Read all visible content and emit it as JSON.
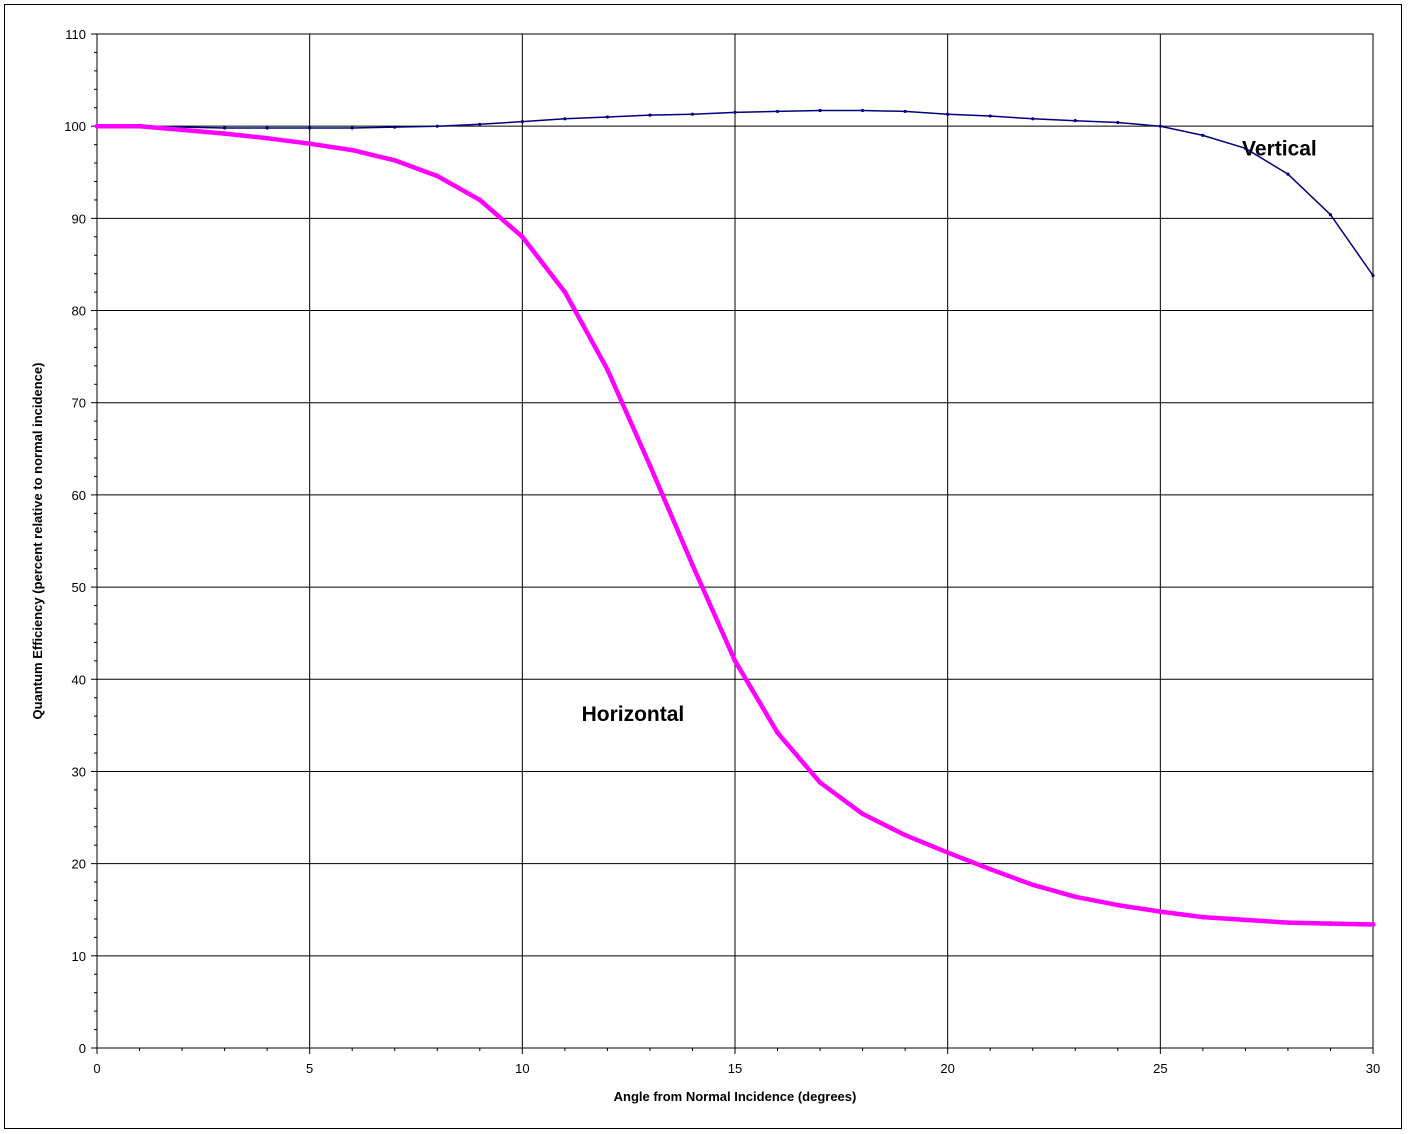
{
  "chart_data": {
    "type": "line",
    "title": "",
    "xlabel": "Angle from Normal Incidence (degrees)",
    "ylabel": "Quantum Efficiency (percent relative to normal incidence)",
    "xlim": [
      0,
      30
    ],
    "ylim": [
      0,
      110
    ],
    "xticks": [
      0,
      5,
      10,
      15,
      20,
      25,
      30
    ],
    "yticks": [
      0,
      10,
      20,
      30,
      40,
      50,
      60,
      70,
      80,
      90,
      100,
      110
    ],
    "grid": true,
    "legend": "none",
    "x": [
      0,
      1,
      2,
      3,
      4,
      5,
      6,
      7,
      8,
      9,
      10,
      11,
      12,
      13,
      14,
      15,
      16,
      17,
      18,
      19,
      20,
      21,
      22,
      23,
      24,
      25,
      26,
      27,
      28,
      29,
      30
    ],
    "series": [
      {
        "name": "Vertical",
        "color": "#000080",
        "values": [
          100.0,
          100.0,
          99.9,
          99.8,
          99.8,
          99.8,
          99.8,
          99.9,
          100.0,
          100.2,
          100.5,
          100.8,
          101.0,
          101.2,
          101.3,
          101.5,
          101.6,
          101.7,
          101.7,
          101.6,
          101.3,
          101.1,
          100.8,
          100.6,
          100.4,
          100.0,
          99.0,
          97.6,
          94.8,
          90.4,
          83.8
        ]
      },
      {
        "name": "Horizontal",
        "color": "#ff00ff",
        "values": [
          100.0,
          100.0,
          99.6,
          99.2,
          98.7,
          98.1,
          97.4,
          96.3,
          94.6,
          92.0,
          88.0,
          82.0,
          73.6,
          63.2,
          52.4,
          42.0,
          34.2,
          28.8,
          25.4,
          23.1,
          21.2,
          19.4,
          17.7,
          16.4,
          15.5,
          14.8,
          14.2,
          13.9,
          13.6,
          13.5,
          13.4
        ]
      }
    ],
    "annotations": [
      {
        "text": "Vertical",
        "x": 27.8,
        "y": 96.8
      },
      {
        "text": "Horizontal",
        "x": 12.6,
        "y": 35.5
      }
    ]
  }
}
